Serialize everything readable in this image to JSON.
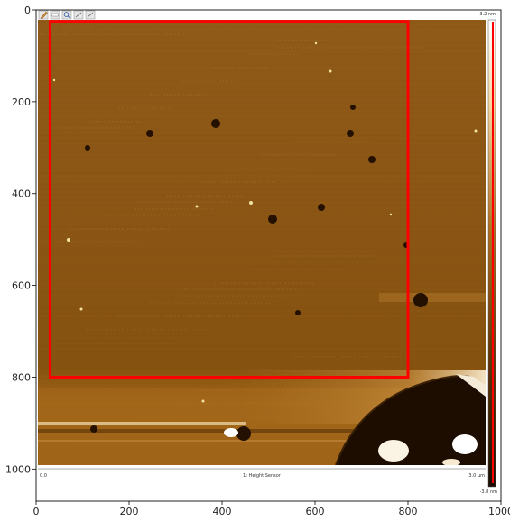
{
  "plot": {
    "x_axis": {
      "range": [
        0,
        1000
      ],
      "ticks": [
        0,
        200,
        400,
        600,
        800,
        1000
      ],
      "labels": [
        "0",
        "200",
        "400",
        "600",
        "800",
        "1000"
      ]
    },
    "y_axis": {
      "range": [
        0,
        1070
      ],
      "ticks": [
        0,
        200,
        400,
        600,
        800,
        1000
      ],
      "labels": [
        "0",
        "200",
        "400",
        "600",
        "800",
        "1000"
      ],
      "inverted": true
    },
    "grid": false
  },
  "afm_image": {
    "channel_label": "1: Height Sensor",
    "scan_start_label": "0.0",
    "scan_end_label": "3.0 µm",
    "colorbar_max_label": "3.2 nm",
    "colorbar_min_label": "-3.8 nm",
    "colormap": {
      "dark": "#2a1400",
      "mid": "#8a5412",
      "light": "#ffffff"
    },
    "toolbar_icons": [
      "pencil-icon",
      "ruler-icon",
      "zoom-icon",
      "pan-icon",
      "reset-icon"
    ]
  },
  "selection": {
    "color": "#ff0000",
    "x_range": [
      30,
      800
    ],
    "y_range": [
      25,
      800
    ]
  }
}
